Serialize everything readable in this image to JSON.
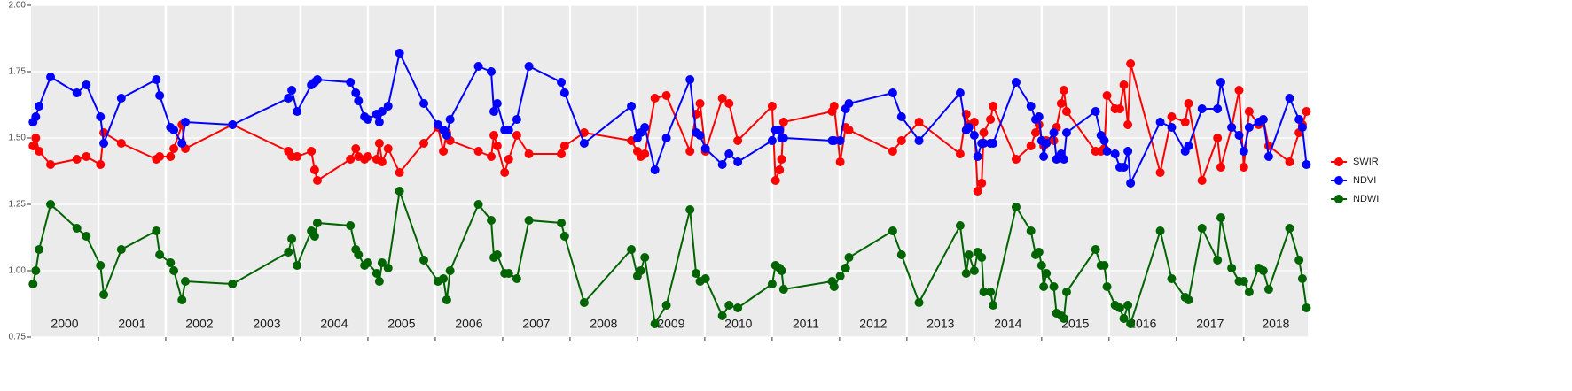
{
  "chart_data": {
    "type": "line",
    "x": [
      2000.03,
      2000.07,
      2000.12,
      2000.29,
      2000.68,
      2000.82,
      2001.03,
      2001.08,
      2001.34,
      2001.86,
      2001.91,
      2002.07,
      2002.12,
      2002.24,
      2002.29,
      2002.99,
      2003.82,
      2003.87,
      2003.95,
      2004.16,
      2004.21,
      2004.25,
      2004.74,
      2004.82,
      2004.86,
      2004.95,
      2005.0,
      2005.13,
      2005.17,
      2005.21,
      2005.3,
      2005.47,
      2005.83,
      2006.04,
      2006.12,
      2006.17,
      2006.22,
      2006.64,
      2006.83,
      2006.87,
      2006.92,
      2007.03,
      2007.09,
      2007.21,
      2007.39,
      2007.87,
      2007.92,
      2008.21,
      2008.91,
      2009.0,
      2009.05,
      2009.11,
      2009.26,
      2009.43,
      2009.78,
      2009.87,
      2009.93,
      2010.01,
      2010.26,
      2010.36,
      2010.49,
      2011.0,
      2011.05,
      2011.11,
      2011.14,
      2011.17,
      2011.89,
      2011.92,
      2012.01,
      2012.09,
      2012.14,
      2012.79,
      2012.92,
      2013.18,
      2013.79,
      2013.88,
      2013.92,
      2014.0,
      2014.05,
      2014.11,
      2014.14,
      2014.24,
      2014.28,
      2014.62,
      2014.84,
      2014.91,
      2014.96,
      2015.0,
      2015.03,
      2015.07,
      2015.18,
      2015.22,
      2015.29,
      2015.33,
      2015.37,
      2015.8,
      2015.88,
      2015.93,
      2015.97,
      2016.09,
      2016.16,
      2016.22,
      2016.28,
      2016.32,
      2016.76,
      2016.93,
      2017.13,
      2017.18,
      2017.38,
      2017.61,
      2017.66,
      2017.82,
      2017.93,
      2018.0,
      2018.08,
      2018.22,
      2018.29,
      2018.37,
      2018.68,
      2018.82,
      2018.87,
      2018.93
    ],
    "series": [
      {
        "name": "SWIR",
        "color": "#ff0000",
        "values": [
          1.47,
          1.5,
          1.45,
          1.4,
          1.42,
          1.43,
          1.4,
          1.52,
          1.48,
          1.42,
          1.43,
          1.43,
          1.46,
          1.55,
          1.46,
          1.55,
          1.45,
          1.43,
          1.43,
          1.45,
          1.38,
          1.34,
          1.42,
          1.46,
          1.43,
          1.42,
          1.43,
          1.42,
          1.48,
          1.41,
          1.46,
          1.37,
          1.48,
          1.54,
          1.45,
          1.52,
          1.49,
          1.45,
          1.43,
          1.51,
          1.47,
          1.37,
          1.42,
          1.51,
          1.44,
          1.44,
          1.47,
          1.52,
          1.49,
          1.45,
          1.43,
          1.44,
          1.65,
          1.66,
          1.45,
          1.59,
          1.63,
          1.45,
          1.65,
          1.63,
          1.49,
          1.62,
          1.34,
          1.38,
          1.42,
          1.56,
          1.6,
          1.62,
          1.41,
          1.54,
          1.53,
          1.45,
          1.49,
          1.56,
          1.44,
          1.59,
          1.55,
          1.56,
          1.3,
          1.33,
          1.52,
          1.57,
          1.62,
          1.42,
          1.47,
          1.52,
          1.55,
          1.49,
          1.47,
          1.49,
          1.49,
          1.54,
          1.63,
          1.68,
          1.6,
          1.45,
          1.45,
          1.46,
          1.66,
          1.61,
          1.61,
          1.7,
          1.55,
          1.78,
          1.37,
          1.58,
          1.56,
          1.63,
          1.34,
          1.5,
          1.39,
          1.54,
          1.68,
          1.39,
          1.6,
          1.55,
          1.57,
          1.47,
          1.41,
          1.52,
          1.55,
          1.6
        ]
      },
      {
        "name": "NDVI",
        "color": "#0000ff",
        "values": [
          1.56,
          1.58,
          1.62,
          1.73,
          1.67,
          1.7,
          1.58,
          1.48,
          1.65,
          1.72,
          1.66,
          1.54,
          1.53,
          1.48,
          1.56,
          1.55,
          1.65,
          1.68,
          1.6,
          1.7,
          1.71,
          1.72,
          1.71,
          1.67,
          1.64,
          1.58,
          1.57,
          1.59,
          1.56,
          1.6,
          1.62,
          1.82,
          1.63,
          1.55,
          1.53,
          1.51,
          1.57,
          1.77,
          1.75,
          1.6,
          1.63,
          1.53,
          1.53,
          1.57,
          1.77,
          1.71,
          1.67,
          1.48,
          1.62,
          1.5,
          1.52,
          1.54,
          1.38,
          1.5,
          1.72,
          1.52,
          1.51,
          1.46,
          1.4,
          1.44,
          1.41,
          1.49,
          1.53,
          1.53,
          1.5,
          1.5,
          1.49,
          1.49,
          1.49,
          1.61,
          1.63,
          1.67,
          1.58,
          1.49,
          1.67,
          1.53,
          1.54,
          1.51,
          1.43,
          1.48,
          1.48,
          1.48,
          1.48,
          1.71,
          1.62,
          1.57,
          1.58,
          1.49,
          1.43,
          1.48,
          1.52,
          1.42,
          1.44,
          1.42,
          1.52,
          1.6,
          1.51,
          1.49,
          1.45,
          1.44,
          1.39,
          1.39,
          1.45,
          1.33,
          1.56,
          1.54,
          1.45,
          1.47,
          1.61,
          1.61,
          1.71,
          1.54,
          1.51,
          1.45,
          1.54,
          1.56,
          1.57,
          1.43,
          1.65,
          1.57,
          1.54,
          1.4
        ]
      },
      {
        "name": "NDWI",
        "color": "#006400",
        "values": [
          0.95,
          1.0,
          1.08,
          1.25,
          1.16,
          1.13,
          1.02,
          0.91,
          1.08,
          1.15,
          1.06,
          1.03,
          1.0,
          0.89,
          0.96,
          0.95,
          1.07,
          1.12,
          1.02,
          1.15,
          1.13,
          1.18,
          1.17,
          1.08,
          1.06,
          1.02,
          1.03,
          0.99,
          0.96,
          1.03,
          1.01,
          1.3,
          1.04,
          0.96,
          0.97,
          0.89,
          1.0,
          1.25,
          1.19,
          1.05,
          1.06,
          0.99,
          0.99,
          0.97,
          1.19,
          1.18,
          1.13,
          0.88,
          1.08,
          0.98,
          1.0,
          1.05,
          0.8,
          0.87,
          1.23,
          0.99,
          0.96,
          0.97,
          0.83,
          0.87,
          0.86,
          0.95,
          1.02,
          1.01,
          1.0,
          0.93,
          0.96,
          0.94,
          0.98,
          1.01,
          1.05,
          1.15,
          1.06,
          0.88,
          1.17,
          0.99,
          1.06,
          1.0,
          1.07,
          1.05,
          0.92,
          0.92,
          0.87,
          1.24,
          1.15,
          1.06,
          1.07,
          1.02,
          0.94,
          0.99,
          0.94,
          0.84,
          0.83,
          0.82,
          0.92,
          1.08,
          1.02,
          1.02,
          0.94,
          0.87,
          0.86,
          0.82,
          0.87,
          0.8,
          1.15,
          0.97,
          0.9,
          0.89,
          1.16,
          1.04,
          1.2,
          1.01,
          0.96,
          0.96,
          0.92,
          1.01,
          1.0,
          0.93,
          1.16,
          1.04,
          0.97,
          0.86
        ]
      }
    ],
    "xlim": [
      2000,
      2018.95
    ],
    "xticks": [
      2001,
      2002,
      2003,
      2004,
      2005,
      2006,
      2007,
      2008,
      2009,
      2010,
      2011,
      2012,
      2013,
      2014,
      2015,
      2016,
      2017,
      2018
    ],
    "year_labels": [
      "2000",
      "2001",
      "2002",
      "2003",
      "2004",
      "2005",
      "2006",
      "2007",
      "2008",
      "2009",
      "2010",
      "2011",
      "2012",
      "2013",
      "2014",
      "2015",
      "2016",
      "2017",
      "2018"
    ],
    "ylim": [
      0.75,
      2.0
    ],
    "yticks": [
      {
        "value": 0.75,
        "label": "0.75"
      },
      {
        "value": 1.0,
        "label": "1.00"
      },
      {
        "value": 1.25,
        "label": "1.25"
      },
      {
        "value": 1.5,
        "label": "1.50"
      },
      {
        "value": 1.75,
        "label": "1.75"
      },
      {
        "value": 2.0,
        "label": "2.00"
      }
    ],
    "grid": true
  }
}
